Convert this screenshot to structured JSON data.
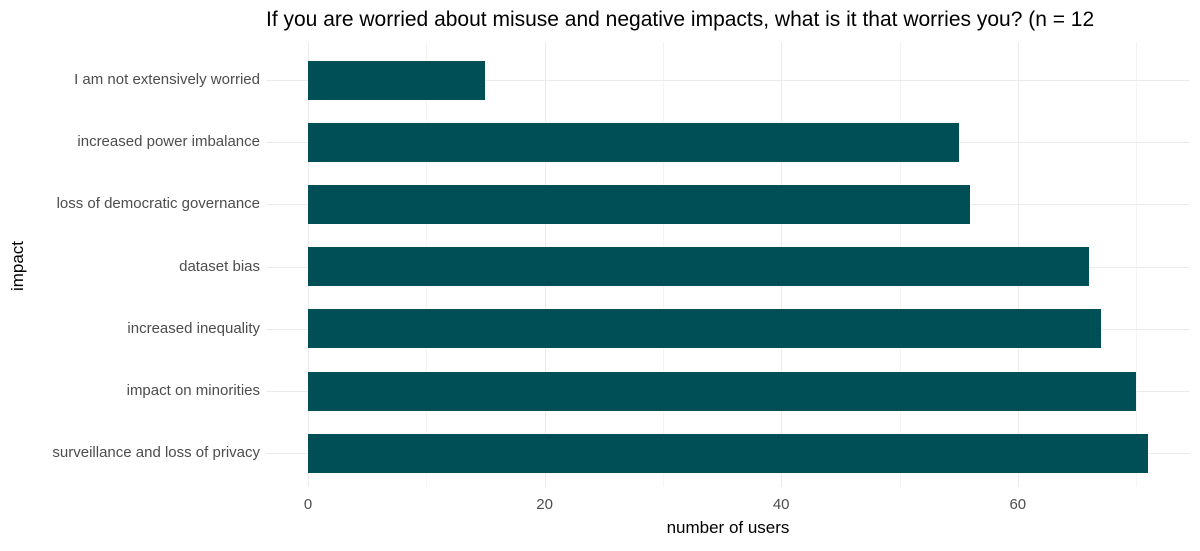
{
  "chart_data": {
    "type": "bar",
    "orientation": "horizontal",
    "title": "If you are worried about misuse and negative impacts, what is it that worries you? (n = 12",
    "title_truncated_at_right_edge": true,
    "xlabel": "number of users",
    "ylabel": "impact",
    "categories": [
      "I am not extensively worried",
      "increased power imbalance",
      "loss of democratic governance",
      "dataset bias",
      "increased inequality",
      "impact on minorities",
      "surveillance and loss of privacy"
    ],
    "values": [
      15,
      55,
      56,
      66,
      67,
      70,
      71
    ],
    "x_major_ticks": [
      0,
      20,
      40,
      60
    ],
    "x_minor_gridlines": [
      10,
      30,
      50,
      70
    ],
    "xlim": [
      -3.6,
      74.6
    ],
    "grid": "on",
    "legend": "none",
    "colors": {
      "bar_fill": "#004E56",
      "major_grid": "#EBEBEB",
      "minor_grid": "#F4F4F4",
      "axis_text": "#4D4D4D",
      "title_text": "#000000",
      "background": "#FFFFFF"
    }
  }
}
